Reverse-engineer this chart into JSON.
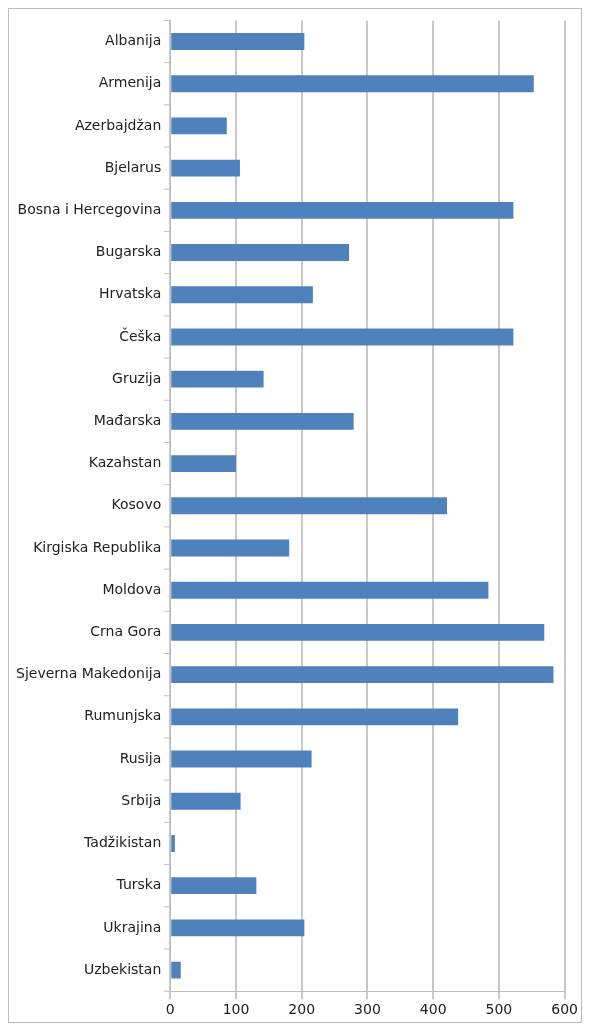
{
  "chart_data": {
    "type": "bar",
    "orientation": "horizontal",
    "categories": [
      "Albanija",
      "Armenija",
      "Azerbajdžan",
      "Bjelarus",
      "Bosna i Hercegovina",
      "Bugarska",
      "Hrvatska",
      "Češka",
      "Gruzija",
      "Mađarska",
      "Kazahstan",
      "Kosovo",
      "Kirgiska Republika",
      "Moldova",
      "Crna Gora",
      "Sjeverna Makedonija",
      "Rumunjska",
      "Rusija",
      "Srbija",
      "Tadžikistan",
      "Turska",
      "Ukrajina",
      "Uzbekistan"
    ],
    "values": [
      204,
      553,
      86,
      106,
      522,
      272,
      217,
      522,
      142,
      279,
      100,
      421,
      181,
      484,
      569,
      583,
      438,
      215,
      107,
      7,
      131,
      204,
      16
    ],
    "color": "#4f81bd",
    "xlim": [
      0,
      600
    ],
    "xticks": [
      0,
      100,
      200,
      300,
      400,
      500,
      600
    ],
    "grid": "x"
  }
}
